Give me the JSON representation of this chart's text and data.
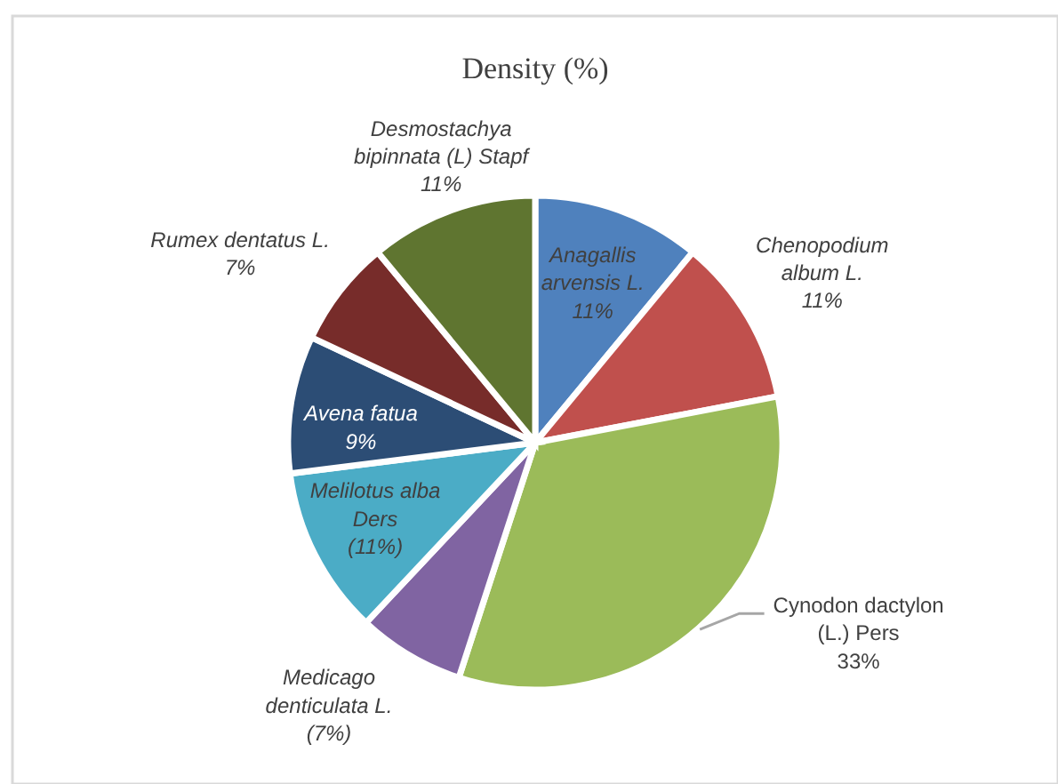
{
  "chart_data": {
    "type": "pie",
    "title": "Density (%)",
    "categories": [
      "Anagallis arvensis L.",
      "Chenopodium album L.",
      "Cynodon dactylon (L.) Pers",
      "Medicago denticulata L.",
      "Melilotus alba Ders",
      "Avena fatua",
      "Rumex dentatus L.",
      "Desmostachya bipinnata (L) Stapf"
    ],
    "values": [
      11,
      11,
      33,
      7,
      11,
      9,
      7,
      11
    ],
    "colors": [
      "#4f81bd",
      "#c0504d",
      "#9bbb59",
      "#8064a2",
      "#4bacc6",
      "#2c4d75",
      "#772c2a",
      "#5f7530"
    ],
    "value_labels": [
      "11%",
      "11%",
      "33%",
      "(7%)",
      "(11%)",
      "9%",
      "7%",
      "11%"
    ]
  }
}
